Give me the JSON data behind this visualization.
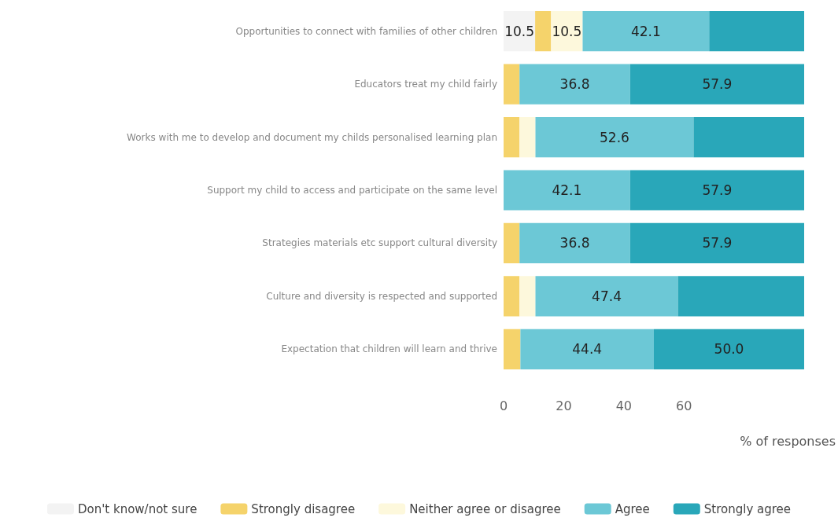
{
  "chart_data": {
    "type": "bar",
    "orientation": "horizontal",
    "stacked": true,
    "xlabel": "% of responses",
    "categories": [
      "Opportunities to connect with families of other children",
      "Educators treat my child fairly",
      "Works with me to develop and document my childs personalised learning plan",
      "Support my child to access and participate on the same level",
      "Strategies materials etc support cultural diversity",
      "Culture and diversity is respected and supported",
      "Expectation that children will learn and thrive"
    ],
    "series": [
      {
        "name": "Don't know/not sure",
        "color": "#f3f3f3",
        "values": [
          10.5,
          0,
          0,
          0,
          0,
          0,
          0
        ],
        "value_labels": [
          "10.5",
          null,
          null,
          null,
          null,
          null,
          null
        ]
      },
      {
        "name": "Strongly disagree",
        "color": "#f5d36b",
        "values": [
          5.3,
          5.3,
          5.3,
          0,
          5.3,
          5.3,
          5.6
        ],
        "value_labels": [
          null,
          null,
          null,
          null,
          null,
          null,
          null
        ]
      },
      {
        "name": "Neither agree or disagree",
        "color": "#fdf8dc",
        "values": [
          10.5,
          0,
          5.3,
          0,
          0,
          5.3,
          0
        ],
        "value_labels": [
          "10.5",
          null,
          null,
          null,
          null,
          null,
          null
        ]
      },
      {
        "name": "Agree",
        "color": "#6cc8d6",
        "values": [
          42.1,
          36.8,
          52.6,
          42.1,
          36.8,
          47.4,
          44.4
        ],
        "value_labels": [
          "42.1",
          "36.8",
          "52.6",
          "42.1",
          "36.8",
          "47.4",
          "44.4"
        ]
      },
      {
        "name": "Strongly agree",
        "color": "#29a7b9",
        "values": [
          31.6,
          57.9,
          36.8,
          57.9,
          57.9,
          42.1,
          50.0
        ],
        "value_labels": [
          null,
          "57.9",
          null,
          "57.9",
          "57.9",
          null,
          "50.0"
        ]
      }
    ],
    "xlim": [
      0,
      100
    ],
    "xticks": [
      0,
      20,
      40,
      60
    ],
    "grid": false,
    "legend": "bottom"
  }
}
